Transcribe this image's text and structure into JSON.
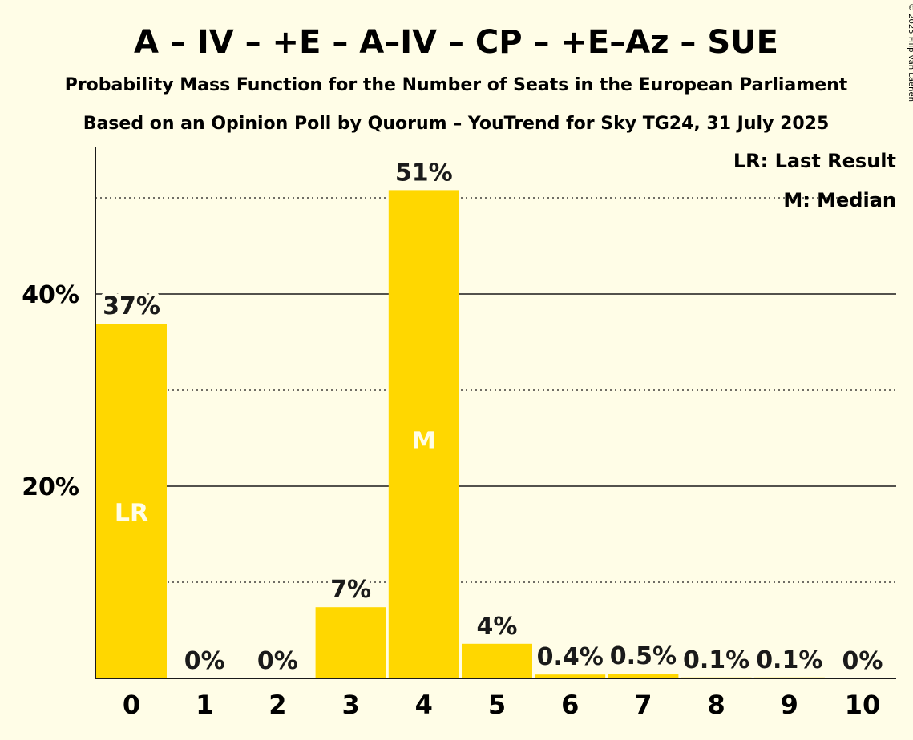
{
  "title": "A – IV – +E – A–IV – CP – +E–Az – SUE",
  "subtitle1": "Probability Mass Function for the Number of Seats in the European Parliament",
  "subtitle2": "Based on an Opinion Poll by Quorum – YouTrend for Sky TG24, 31 July 2025",
  "copyright": "© 2025 Filip van Laenen",
  "legend": {
    "last_result": "LR: Last Result",
    "median": "M: Median"
  },
  "colors": {
    "background": "#fffde7",
    "bar": "#ffd700",
    "text": "#1a1a1a"
  },
  "chart_data": {
    "type": "bar",
    "categories": [
      "0",
      "1",
      "2",
      "3",
      "4",
      "5",
      "6",
      "7",
      "8",
      "9",
      "10"
    ],
    "values": [
      36.9,
      0,
      0,
      7.4,
      50.8,
      3.6,
      0.4,
      0.5,
      0.1,
      0.1,
      0
    ],
    "data_labels": [
      "37%",
      "0%",
      "0%",
      "7%",
      "51%",
      "4%",
      "0.4%",
      "0.5%",
      "0.1%",
      "0.1%",
      "0%"
    ],
    "bar_markers": {
      "0": "LR",
      "4": "M"
    },
    "ylim": [
      0,
      55
    ],
    "yticks": [
      20,
      40
    ],
    "ytick_labels": [
      "20%",
      "40%"
    ],
    "minor_gridlines": [
      10,
      30,
      50
    ],
    "xlabel": "",
    "ylabel": "",
    "legend_position": "top-right"
  }
}
